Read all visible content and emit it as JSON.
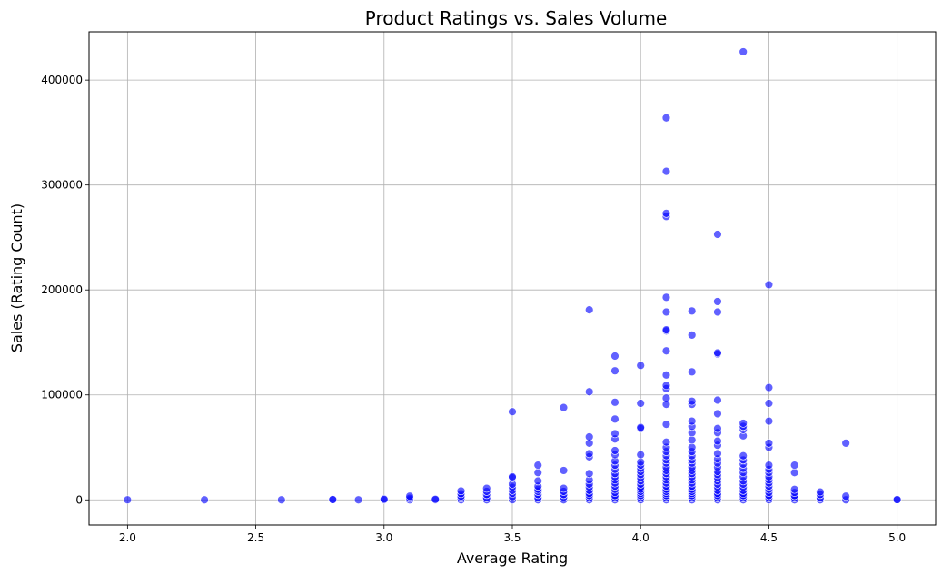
{
  "chart_data": {
    "type": "scatter",
    "title": "Product Ratings vs. Sales Volume",
    "xlabel": "Average Rating",
    "ylabel": "Sales (Rating Count)",
    "xlim": [
      1.85,
      5.15
    ],
    "ylim": [
      -24000,
      446000
    ],
    "x_ticks": [
      2.0,
      2.5,
      3.0,
      3.5,
      4.0,
      4.5,
      5.0
    ],
    "x_tick_labels": [
      "2.0",
      "2.5",
      "3.0",
      "3.5",
      "4.0",
      "4.5",
      "5.0"
    ],
    "y_ticks": [
      0,
      100000,
      200000,
      300000,
      400000
    ],
    "y_tick_labels": [
      "0",
      "100000",
      "200000",
      "300000",
      "400000"
    ],
    "grid": true,
    "marker_color": "#0000ff",
    "marker_edge_color": "#ffffff",
    "points": [
      [
        2.0,
        0
      ],
      [
        2.3,
        0
      ],
      [
        2.6,
        0
      ],
      [
        2.8,
        0
      ],
      [
        2.8,
        300
      ],
      [
        2.9,
        0
      ],
      [
        3.0,
        0
      ],
      [
        3.0,
        600
      ],
      [
        3.1,
        0
      ],
      [
        3.1,
        1500
      ],
      [
        3.1,
        3500
      ],
      [
        3.2,
        0
      ],
      [
        3.2,
        500
      ],
      [
        3.3,
        0
      ],
      [
        3.3,
        1800
      ],
      [
        3.3,
        3500
      ],
      [
        3.3,
        5800
      ],
      [
        3.3,
        8500
      ],
      [
        3.4,
        0
      ],
      [
        3.4,
        2000
      ],
      [
        3.4,
        5000
      ],
      [
        3.4,
        8000
      ],
      [
        3.4,
        11000
      ],
      [
        3.5,
        0
      ],
      [
        3.5,
        3000
      ],
      [
        3.5,
        6000
      ],
      [
        3.5,
        9000
      ],
      [
        3.5,
        12000
      ],
      [
        3.5,
        15000
      ],
      [
        3.5,
        21000
      ],
      [
        3.5,
        22000
      ],
      [
        3.5,
        84000
      ],
      [
        3.6,
        0
      ],
      [
        3.6,
        2000
      ],
      [
        3.6,
        5000
      ],
      [
        3.6,
        8000
      ],
      [
        3.6,
        10000
      ],
      [
        3.6,
        13000
      ],
      [
        3.6,
        18000
      ],
      [
        3.6,
        26000
      ],
      [
        3.6,
        33000
      ],
      [
        3.7,
        0
      ],
      [
        3.7,
        2500
      ],
      [
        3.7,
        5000
      ],
      [
        3.7,
        8000
      ],
      [
        3.7,
        11000
      ],
      [
        3.7,
        28000
      ],
      [
        3.7,
        88000
      ],
      [
        3.8,
        0
      ],
      [
        3.8,
        2000
      ],
      [
        3.8,
        4000
      ],
      [
        3.8,
        6000
      ],
      [
        3.8,
        9000
      ],
      [
        3.8,
        12000
      ],
      [
        3.8,
        15000
      ],
      [
        3.8,
        19000
      ],
      [
        3.8,
        25000
      ],
      [
        3.8,
        41000
      ],
      [
        3.8,
        44000
      ],
      [
        3.8,
        54000
      ],
      [
        3.8,
        60000
      ],
      [
        3.8,
        103000
      ],
      [
        3.8,
        181000
      ],
      [
        3.9,
        0
      ],
      [
        3.9,
        2000
      ],
      [
        3.9,
        4000
      ],
      [
        3.9,
        7000
      ],
      [
        3.9,
        10000
      ],
      [
        3.9,
        13000
      ],
      [
        3.9,
        16000
      ],
      [
        3.9,
        19000
      ],
      [
        3.9,
        22000
      ],
      [
        3.9,
        25000
      ],
      [
        3.9,
        29000
      ],
      [
        3.9,
        33000
      ],
      [
        3.9,
        37000
      ],
      [
        3.9,
        43000
      ],
      [
        3.9,
        47000
      ],
      [
        3.9,
        58000
      ],
      [
        3.9,
        63000
      ],
      [
        3.9,
        77000
      ],
      [
        3.9,
        93000
      ],
      [
        3.9,
        123000
      ],
      [
        3.9,
        137000
      ],
      [
        4.0,
        0
      ],
      [
        4.0,
        2000
      ],
      [
        4.0,
        4000
      ],
      [
        4.0,
        6000
      ],
      [
        4.0,
        8000
      ],
      [
        4.0,
        10000
      ],
      [
        4.0,
        12000
      ],
      [
        4.0,
        15000
      ],
      [
        4.0,
        18000
      ],
      [
        4.0,
        21000
      ],
      [
        4.0,
        24000
      ],
      [
        4.0,
        27000
      ],
      [
        4.0,
        30000
      ],
      [
        4.0,
        33000
      ],
      [
        4.0,
        36000
      ],
      [
        4.0,
        43000
      ],
      [
        4.0,
        68000
      ],
      [
        4.0,
        69000
      ],
      [
        4.0,
        92000
      ],
      [
        4.0,
        128000
      ],
      [
        4.1,
        0
      ],
      [
        4.1,
        2000
      ],
      [
        4.1,
        4000
      ],
      [
        4.1,
        6000
      ],
      [
        4.1,
        8000
      ],
      [
        4.1,
        10000
      ],
      [
        4.1,
        13000
      ],
      [
        4.1,
        16000
      ],
      [
        4.1,
        19000
      ],
      [
        4.1,
        22000
      ],
      [
        4.1,
        25000
      ],
      [
        4.1,
        28000
      ],
      [
        4.1,
        31000
      ],
      [
        4.1,
        35000
      ],
      [
        4.1,
        38000
      ],
      [
        4.1,
        42000
      ],
      [
        4.1,
        46000
      ],
      [
        4.1,
        50000
      ],
      [
        4.1,
        55000
      ],
      [
        4.1,
        72000
      ],
      [
        4.1,
        91000
      ],
      [
        4.1,
        97000
      ],
      [
        4.1,
        106000
      ],
      [
        4.1,
        109000
      ],
      [
        4.1,
        119000
      ],
      [
        4.1,
        142000
      ],
      [
        4.1,
        161000
      ],
      [
        4.1,
        162000
      ],
      [
        4.1,
        179000
      ],
      [
        4.1,
        193000
      ],
      [
        4.1,
        270000
      ],
      [
        4.1,
        273000
      ],
      [
        4.1,
        313000
      ],
      [
        4.1,
        364000
      ],
      [
        4.2,
        0
      ],
      [
        4.2,
        2000
      ],
      [
        4.2,
        4000
      ],
      [
        4.2,
        6000
      ],
      [
        4.2,
        8000
      ],
      [
        4.2,
        10000
      ],
      [
        4.2,
        13000
      ],
      [
        4.2,
        16000
      ],
      [
        4.2,
        19000
      ],
      [
        4.2,
        22000
      ],
      [
        4.2,
        25000
      ],
      [
        4.2,
        28000
      ],
      [
        4.2,
        31000
      ],
      [
        4.2,
        35000
      ],
      [
        4.2,
        38000
      ],
      [
        4.2,
        42000
      ],
      [
        4.2,
        46000
      ],
      [
        4.2,
        50000
      ],
      [
        4.2,
        57000
      ],
      [
        4.2,
        64000
      ],
      [
        4.2,
        70000
      ],
      [
        4.2,
        75000
      ],
      [
        4.2,
        91000
      ],
      [
        4.2,
        94000
      ],
      [
        4.2,
        122000
      ],
      [
        4.2,
        157000
      ],
      [
        4.2,
        180000
      ],
      [
        4.3,
        0
      ],
      [
        4.3,
        2000
      ],
      [
        4.3,
        4000
      ],
      [
        4.3,
        6000
      ],
      [
        4.3,
        9000
      ],
      [
        4.3,
        12000
      ],
      [
        4.3,
        15000
      ],
      [
        4.3,
        18000
      ],
      [
        4.3,
        21000
      ],
      [
        4.3,
        24000
      ],
      [
        4.3,
        27000
      ],
      [
        4.3,
        31000
      ],
      [
        4.3,
        35000
      ],
      [
        4.3,
        39000
      ],
      [
        4.3,
        44000
      ],
      [
        4.3,
        52000
      ],
      [
        4.3,
        56000
      ],
      [
        4.3,
        64000
      ],
      [
        4.3,
        68000
      ],
      [
        4.3,
        82000
      ],
      [
        4.3,
        95000
      ],
      [
        4.3,
        139000
      ],
      [
        4.3,
        140000
      ],
      [
        4.3,
        179000
      ],
      [
        4.3,
        189000
      ],
      [
        4.3,
        253000
      ],
      [
        4.4,
        0
      ],
      [
        4.4,
        2000
      ],
      [
        4.4,
        4000
      ],
      [
        4.4,
        6000
      ],
      [
        4.4,
        9000
      ],
      [
        4.4,
        12000
      ],
      [
        4.4,
        15000
      ],
      [
        4.4,
        18000
      ],
      [
        4.4,
        22000
      ],
      [
        4.4,
        26000
      ],
      [
        4.4,
        30000
      ],
      [
        4.4,
        34000
      ],
      [
        4.4,
        38000
      ],
      [
        4.4,
        42000
      ],
      [
        4.4,
        61000
      ],
      [
        4.4,
        67000
      ],
      [
        4.4,
        70000
      ],
      [
        4.4,
        73000
      ],
      [
        4.4,
        427000
      ],
      [
        4.5,
        0
      ],
      [
        4.5,
        2000
      ],
      [
        4.5,
        4000
      ],
      [
        4.5,
        7000
      ],
      [
        4.5,
        10000
      ],
      [
        4.5,
        13000
      ],
      [
        4.5,
        16000
      ],
      [
        4.5,
        19000
      ],
      [
        4.5,
        22000
      ],
      [
        4.5,
        26000
      ],
      [
        4.5,
        29000
      ],
      [
        4.5,
        33000
      ],
      [
        4.5,
        50000
      ],
      [
        4.5,
        54000
      ],
      [
        4.5,
        75000
      ],
      [
        4.5,
        92000
      ],
      [
        4.5,
        107000
      ],
      [
        4.5,
        205000
      ],
      [
        4.6,
        0
      ],
      [
        4.6,
        2000
      ],
      [
        4.6,
        4000
      ],
      [
        4.6,
        7000
      ],
      [
        4.6,
        10000
      ],
      [
        4.6,
        26000
      ],
      [
        4.6,
        33000
      ],
      [
        4.7,
        0
      ],
      [
        4.7,
        2000
      ],
      [
        4.7,
        5000
      ],
      [
        4.7,
        7500
      ],
      [
        4.8,
        0
      ],
      [
        4.8,
        3500
      ],
      [
        4.8,
        54000
      ],
      [
        5.0,
        0
      ],
      [
        5.0,
        200
      ]
    ]
  }
}
